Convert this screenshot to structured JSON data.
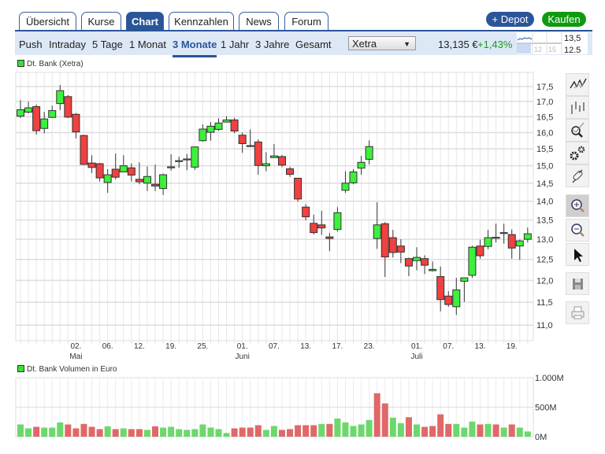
{
  "tabs": [
    {
      "label": "Übersicht"
    },
    {
      "label": "Kurse"
    },
    {
      "label": "Chart",
      "active": true
    },
    {
      "label": "Kennzahlen"
    },
    {
      "label": "News"
    },
    {
      "label": "Forum"
    }
  ],
  "actions": {
    "depot": "+ Depot",
    "buy": "Kaufen"
  },
  "periods": [
    {
      "label": "Push"
    },
    {
      "label": "Intraday"
    },
    {
      "label": "5 Tage"
    },
    {
      "label": "1 Monat"
    },
    {
      "label": "3 Monate",
      "active": true
    },
    {
      "label": "1 Jahr"
    },
    {
      "label": "3 Jahre"
    },
    {
      "label": "Gesamt"
    }
  ],
  "exchange": {
    "selected": "Xetra"
  },
  "quote": {
    "price": "13,135 €",
    "change": "+1,43%"
  },
  "mini_chart": {
    "labels": [
      "13,5",
      "12.5"
    ],
    "ticks": [
      "12",
      "15"
    ]
  },
  "colors": {
    "up": "#3cf03c",
    "down": "#f04040",
    "vol_up": "#6cd86c",
    "vol_down": "#e06868",
    "accent": "#2a5599",
    "buy": "#119a11",
    "change": "#1a9a1a"
  },
  "toolbar": [
    {
      "icon": "line-chart-icon"
    },
    {
      "icon": "ohlc-chart-icon"
    },
    {
      "icon": "indicator-search-icon"
    },
    {
      "icon": "settings-gears-icon"
    },
    {
      "icon": "link-icon"
    },
    {
      "icon": "zoom-in-icon",
      "selected": true
    },
    {
      "icon": "zoom-out-icon"
    },
    {
      "icon": "pointer-icon"
    },
    {
      "icon": "save-icon"
    },
    {
      "icon": "print-icon"
    }
  ],
  "chart_data": [
    {
      "type": "candlestick",
      "legend": "Dt. Bank (Xetra)",
      "y_scale": "log",
      "ylim": [
        10.7,
        17.9
      ],
      "y_ticks": [
        "17,5",
        "17,0",
        "16,5",
        "16,0",
        "15,5",
        "15,0",
        "14,5",
        "14,0",
        "13,5",
        "13,0",
        "12,5",
        "12,0",
        "11,5",
        "11,0"
      ],
      "y_tick_values": [
        17.5,
        17.0,
        16.5,
        16.0,
        15.5,
        15.0,
        14.5,
        14.0,
        13.5,
        13.0,
        12.5,
        12.0,
        11.5,
        11.0
      ],
      "x_ticks": [
        {
          "i": 8,
          "label": "02.",
          "month": "Mai"
        },
        {
          "i": 12,
          "label": "06."
        },
        {
          "i": 16,
          "label": "12."
        },
        {
          "i": 20,
          "label": "19."
        },
        {
          "i": 24,
          "label": "25."
        },
        {
          "i": 29,
          "label": "01.",
          "month": "Juni"
        },
        {
          "i": 33,
          "label": "07."
        },
        {
          "i": 37,
          "label": "13."
        },
        {
          "i": 41,
          "label": "17."
        },
        {
          "i": 45,
          "label": "23."
        },
        {
          "i": 51,
          "label": "01.",
          "month": "Juli"
        },
        {
          "i": 55,
          "label": "07."
        },
        {
          "i": 59,
          "label": "13."
        },
        {
          "i": 63,
          "label": "19."
        }
      ],
      "grid": true,
      "ohlc": [
        [
          16.52,
          17.04,
          16.46,
          16.73
        ],
        [
          16.65,
          16.99,
          16.61,
          16.79
        ],
        [
          16.83,
          16.9,
          15.94,
          16.06
        ],
        [
          16.13,
          16.66,
          15.98,
          16.43
        ],
        [
          16.48,
          16.86,
          16.46,
          16.7
        ],
        [
          16.93,
          17.55,
          16.71,
          17.36
        ],
        [
          17.16,
          17.21,
          16.46,
          16.49
        ],
        [
          16.58,
          16.62,
          15.82,
          16.02
        ],
        [
          15.91,
          15.93,
          15.02,
          15.04
        ],
        [
          15.08,
          15.31,
          14.79,
          14.95
        ],
        [
          15.06,
          15.08,
          14.55,
          14.65
        ],
        [
          14.52,
          14.9,
          14.23,
          14.74
        ],
        [
          14.9,
          15.36,
          14.61,
          14.67
        ],
        [
          14.82,
          15.31,
          14.82,
          15.0
        ],
        [
          14.94,
          15.07,
          14.55,
          14.73
        ],
        [
          14.61,
          15.1,
          14.47,
          14.54
        ],
        [
          14.5,
          14.98,
          14.28,
          14.69
        ],
        [
          14.47,
          15.03,
          14.28,
          14.42
        ],
        [
          14.35,
          14.77,
          14.17,
          14.74
        ],
        [
          14.94,
          15.34,
          14.86,
          14.97
        ],
        [
          15.13,
          15.27,
          14.94,
          15.15
        ],
        [
          15.18,
          15.35,
          14.87,
          15.2
        ],
        [
          14.96,
          15.57,
          14.88,
          15.56
        ],
        [
          15.75,
          16.26,
          15.72,
          16.11
        ],
        [
          16.01,
          16.33,
          15.75,
          16.2
        ],
        [
          16.1,
          16.45,
          16.06,
          16.3
        ],
        [
          16.33,
          16.52,
          16.33,
          16.4
        ],
        [
          16.4,
          16.47,
          15.98,
          16.05
        ],
        [
          15.92,
          16.0,
          15.38,
          15.66
        ],
        [
          15.6,
          16.1,
          15.58,
          15.58
        ],
        [
          15.71,
          15.79,
          14.74,
          15.01
        ],
        [
          15.0,
          15.4,
          14.84,
          15.06
        ],
        [
          15.24,
          15.65,
          15.24,
          15.29
        ],
        [
          15.27,
          15.32,
          14.96,
          15.02
        ],
        [
          14.91,
          14.97,
          14.68,
          14.75
        ],
        [
          14.64,
          14.64,
          13.99,
          14.06
        ],
        [
          13.84,
          13.92,
          13.49,
          13.58
        ],
        [
          13.41,
          13.64,
          13.12,
          13.17
        ],
        [
          13.37,
          13.74,
          13.11,
          13.29
        ],
        [
          13.06,
          13.16,
          12.7,
          13.02
        ],
        [
          13.25,
          13.84,
          13.2,
          13.69
        ],
        [
          14.3,
          14.84,
          14.23,
          14.5
        ],
        [
          14.51,
          14.9,
          14.47,
          14.82
        ],
        [
          14.93,
          15.29,
          14.74,
          15.1
        ],
        [
          15.19,
          15.76,
          15.04,
          15.57
        ],
        [
          13.02,
          13.97,
          12.76,
          13.37
        ],
        [
          13.4,
          13.44,
          12.08,
          12.56
        ],
        [
          13.04,
          13.24,
          12.55,
          12.67
        ],
        [
          12.83,
          13.0,
          12.41,
          12.68
        ],
        [
          12.52,
          12.54,
          12.1,
          12.34
        ],
        [
          12.47,
          12.8,
          12.24,
          12.55
        ],
        [
          12.52,
          12.6,
          12.15,
          12.36
        ],
        [
          12.23,
          12.45,
          12.21,
          12.26
        ],
        [
          12.09,
          12.33,
          11.3,
          11.56
        ],
        [
          11.64,
          11.75,
          11.4,
          11.45
        ],
        [
          11.4,
          12.06,
          11.22,
          11.78
        ],
        [
          11.98,
          12.06,
          11.51,
          12.06
        ],
        [
          12.12,
          12.84,
          12.06,
          12.8
        ],
        [
          12.83,
          12.99,
          12.52,
          12.59
        ],
        [
          12.82,
          13.24,
          12.75,
          13.04
        ],
        [
          13.03,
          13.4,
          12.92,
          13.05
        ],
        [
          13.15,
          13.4,
          12.89,
          13.17
        ],
        [
          13.12,
          13.25,
          12.52,
          12.78
        ],
        [
          12.83,
          12.99,
          12.49,
          12.96
        ],
        [
          13.0,
          13.3,
          12.92,
          13.14
        ]
      ]
    },
    {
      "type": "bar",
      "legend": "Dt. Bank Volumen in Euro",
      "ylim": [
        0,
        1000
      ],
      "unit": "M",
      "y_ticks": [
        "1.000M",
        "500M",
        "0M"
      ],
      "y_tick_values": [
        1000,
        500,
        0
      ],
      "values": [
        207,
        141,
        167,
        154,
        154,
        242,
        207,
        141,
        216,
        167,
        128,
        176,
        128,
        141,
        128,
        128,
        115,
        176,
        154,
        167,
        128,
        115,
        128,
        207,
        154,
        128,
        62,
        141,
        154,
        154,
        194,
        115,
        181,
        115,
        128,
        194,
        194,
        194,
        216,
        216,
        308,
        242,
        181,
        207,
        282,
        736,
        564,
        322,
        229,
        330,
        207,
        167,
        181,
        379,
        216,
        216,
        154,
        256,
        207,
        216,
        207,
        154,
        207,
        154,
        88
      ],
      "up": [
        1,
        1,
        0,
        1,
        1,
        1,
        0,
        0,
        0,
        0,
        0,
        1,
        0,
        1,
        0,
        0,
        1,
        0,
        1,
        1,
        1,
        1,
        1,
        1,
        1,
        1,
        1,
        0,
        0,
        0,
        0,
        1,
        1,
        0,
        0,
        0,
        0,
        0,
        1,
        0,
        1,
        1,
        1,
        1,
        1,
        0,
        0,
        1,
        1,
        0,
        1,
        0,
        0,
        0,
        0,
        1,
        1,
        1,
        0,
        1,
        0,
        1,
        0,
        1,
        1
      ]
    }
  ]
}
